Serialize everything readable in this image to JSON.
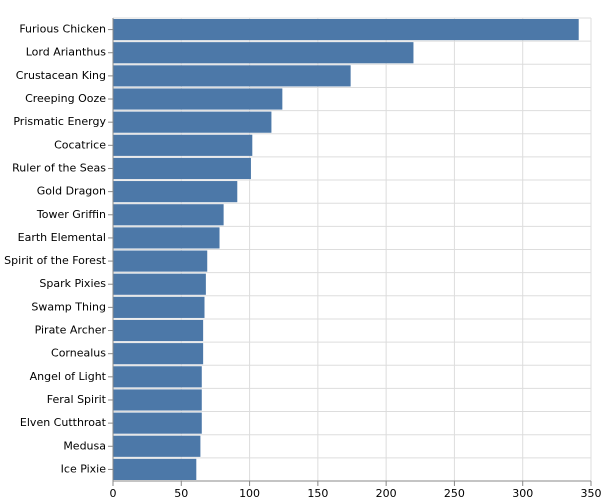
{
  "chart_data": {
    "type": "bar",
    "orientation": "horizontal",
    "categories": [
      "Furious Chicken",
      "Lord Arianthus",
      "Crustacean King",
      "Creeping Ooze",
      "Prismatic Energy",
      "Cocatrice",
      "Ruler of the Seas",
      "Gold Dragon",
      "Tower Griffin",
      "Earth Elemental",
      "Spirit of the Forest",
      "Spark Pixies",
      "Swamp Thing",
      "Pirate Archer",
      "Cornealus",
      "Angel of Light",
      "Feral Spirit",
      "Elven Cutthroat",
      "Medusa",
      "Ice Pixie"
    ],
    "values": [
      341,
      220,
      174,
      124,
      116,
      102,
      101,
      91,
      81,
      78,
      69,
      68,
      67,
      66,
      66,
      65,
      65,
      65,
      64,
      61
    ],
    "color": "#4c78a8",
    "xlim": [
      0,
      350
    ],
    "xticks": [
      0,
      50,
      100,
      150,
      200,
      250,
      300,
      350
    ],
    "grid": true
  }
}
